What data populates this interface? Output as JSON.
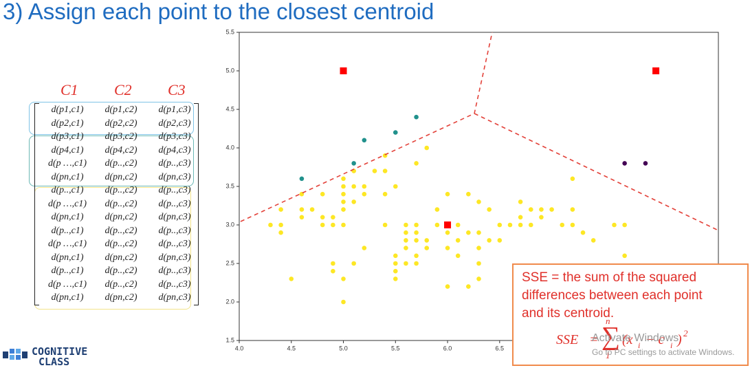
{
  "slide": {
    "title": "3) Assign each point to the closest centroid",
    "matrix": {
      "headers": [
        "C1",
        "C2",
        "C3"
      ],
      "rows": [
        [
          "d(p1,c1)",
          "d(p1,c2)",
          "d(p1,c3)"
        ],
        [
          "d(p2,c1)",
          "d(p2,c2)",
          "d(p2,c3)"
        ],
        [
          "d(p3,c1)",
          "d(p3,c2)",
          "d(p3,c3)"
        ],
        [
          "d(p4,c1)",
          "d(p4,c2)",
          "d(p4,c3)"
        ],
        [
          "d(p …,c1)",
          "d(p..,c2)",
          "d(p..,c3)"
        ],
        [
          "d(pn,c1)",
          "d(pn,c2)",
          "d(pn,c3)"
        ],
        [
          "d(p..,c1)",
          "d(p..,c2)",
          "d(p..,c3)"
        ],
        [
          "d(p …,c1)",
          "d(p..,c2)",
          "d(p..,c3)"
        ],
        [
          "d(pn,c1)",
          "d(pn,c2)",
          "d(pn,c3)"
        ],
        [
          "d(p..,c1)",
          "d(p..,c2)",
          "d(p..,c3)"
        ],
        [
          "d(p …,c1)",
          "d(p..,c2)",
          "d(p..,c3)"
        ],
        [
          "d(pn,c1)",
          "d(pn,c2)",
          "d(pn,c3)"
        ],
        [
          "d(p..,c1)",
          "d(p..,c2)",
          "d(p..,c3)"
        ],
        [
          "d(p …,c1)",
          "d(p..,c2)",
          "d(p..,c3)"
        ],
        [
          "d(pn,c1)",
          "d(pn,c2)",
          "d(pn,c3)"
        ]
      ]
    },
    "sse_note": [
      "SSE = the sum of the squared",
      "differences between each point",
      "and its centroid."
    ],
    "formula": [
      "SSE",
      "=",
      "∑",
      "1",
      "n",
      "(x",
      "i",
      "− c",
      "i",
      ")",
      "2"
    ],
    "watermark": [
      "Activate Windows",
      "Go to PC settings to activate Windows."
    ],
    "logo": [
      "COGNITIVE",
      "CLASS"
    ]
  },
  "chart_data": {
    "type": "scatter",
    "xlim": [
      4.0,
      8.6
    ],
    "ylim": [
      1.5,
      5.5
    ],
    "xticks": [
      {
        "value": 4,
        "label": "4.0"
      },
      4.5,
      {
        "value": 5,
        "label": "5.0"
      },
      5.5,
      {
        "value": 6,
        "label": "6.0"
      },
      6.5
    ],
    "yticks": [
      1.5,
      {
        "value": 2,
        "label": "2.0"
      },
      2.5,
      {
        "value": 3,
        "label": "3.0"
      },
      3.5,
      {
        "value": 4,
        "label": "4.0"
      },
      4.5,
      {
        "value": 5,
        "label": "5.0"
      },
      5.5
    ],
    "series": [
      {
        "color": "#fde725",
        "marker": "circle",
        "x": [
          4.3,
          4.4,
          4.4,
          4.4,
          4.5,
          4.6,
          4.6,
          4.6,
          4.7,
          4.8,
          4.8,
          4.8,
          4.9,
          4.9,
          4.9,
          4.9,
          5.0,
          5.0,
          5.0,
          5.0,
          5.0,
          5.0,
          5.0,
          5.0,
          5.1,
          5.1,
          5.1,
          5.1,
          5.2,
          5.2,
          5.2,
          5.3,
          5.4,
          5.4,
          5.4,
          5.4,
          5.5,
          5.5,
          5.5,
          5.5,
          5.5,
          5.6,
          5.6,
          5.6,
          5.6,
          5.6,
          5.7,
          5.7,
          5.7,
          5.7,
          5.7,
          5.7,
          5.8,
          5.8,
          5.8,
          5.9,
          5.9,
          6.0,
          6.0,
          6.0,
          6.0,
          6.1,
          6.1,
          6.1,
          6.2,
          6.2,
          6.2,
          6.3,
          6.3,
          6.3,
          6.3,
          6.3,
          6.4,
          6.4,
          6.5,
          6.5,
          6.6,
          6.7,
          6.7,
          6.7,
          6.8,
          6.8,
          6.9,
          6.9,
          7.0,
          7.1,
          7.2,
          7.2,
          7.2,
          7.3,
          7.4,
          7.6,
          7.7,
          7.7
        ],
        "values": [
          3.0,
          3.0,
          2.9,
          3.2,
          2.3,
          3.1,
          3.4,
          3.2,
          3.2,
          3.0,
          3.1,
          3.4,
          3.0,
          3.1,
          2.5,
          2.4,
          3.0,
          3.2,
          3.3,
          3.4,
          3.5,
          3.6,
          2.3,
          2.0,
          3.3,
          3.5,
          3.7,
          2.5,
          3.4,
          3.5,
          2.7,
          3.7,
          3.4,
          3.7,
          3.9,
          3.0,
          2.3,
          2.4,
          2.5,
          2.6,
          3.5,
          2.5,
          2.7,
          2.8,
          2.9,
          3.0,
          2.5,
          2.6,
          2.8,
          2.9,
          3.0,
          3.8,
          2.7,
          2.8,
          4.0,
          3.0,
          3.2,
          2.2,
          2.7,
          2.9,
          3.4,
          2.6,
          2.8,
          3.0,
          2.2,
          2.9,
          3.4,
          2.3,
          2.5,
          2.7,
          2.9,
          3.3,
          2.8,
          3.2,
          2.8,
          3.0,
          3.0,
          3.0,
          3.1,
          3.3,
          3.0,
          3.2,
          3.1,
          3.2,
          3.2,
          3.0,
          3.0,
          3.6,
          3.2,
          2.9,
          2.8,
          3.0,
          3.0,
          2.6
        ]
      },
      {
        "color": "#21918c",
        "marker": "circle",
        "x": [
          4.6,
          5.1,
          5.2,
          5.5,
          5.7
        ],
        "values": [
          3.6,
          3.8,
          4.1,
          4.2,
          4.4
        ]
      },
      {
        "color": "#440154",
        "marker": "circle",
        "x": [
          7.7,
          7.9
        ],
        "values": [
          3.8,
          3.8
        ]
      },
      {
        "color": "#ff0000",
        "marker": "square",
        "x": [
          5.0,
          8.0,
          6.0
        ],
        "values": [
          5.0,
          5.0,
          3.0
        ]
      }
    ]
  }
}
